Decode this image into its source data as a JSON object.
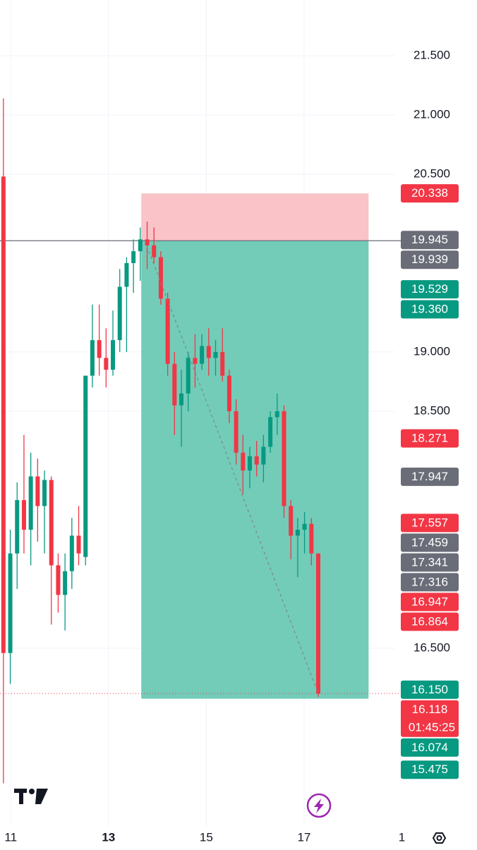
{
  "chart_data": {
    "type": "candlestick",
    "up_color": "#089981",
    "down_color": "#f23645",
    "xlim": [
      10.78,
      19.08
    ],
    "ylim": [
      15.0,
      21.97
    ],
    "xticks": [
      11,
      {
        "value": 13,
        "label": "13"
      },
      15,
      17,
      {
        "value": 19,
        "label": "1"
      }
    ],
    "yticks": [
      {
        "value": 21.5,
        "label": "21.500"
      },
      {
        "value": 21.0,
        "label": "21.000"
      },
      {
        "value": 20.5,
        "label": "20.500"
      },
      {
        "value": 19.0,
        "label": "19.000"
      },
      {
        "value": 18.5,
        "label": "18.500"
      },
      {
        "value": 16.5,
        "label": "16.500"
      }
    ],
    "grid": true,
    "x": [
      10.85,
      10.99,
      11.13,
      11.27,
      11.41,
      11.55,
      11.69,
      11.83,
      11.97,
      12.11,
      12.25,
      12.39,
      12.53,
      12.67,
      12.81,
      12.95,
      13.09,
      13.23,
      13.37,
      13.51,
      13.65,
      13.79,
      13.93,
      14.07,
      14.21,
      14.35,
      14.49,
      14.63,
      14.77,
      14.91,
      15.05,
      15.19,
      15.33,
      15.47,
      15.61,
      15.75,
      15.89,
      16.03,
      16.17,
      16.31,
      16.45,
      16.59,
      16.73,
      16.87,
      17.01,
      17.15,
      17.29
    ],
    "open": [
      20.48,
      16.46,
      17.3,
      17.75,
      17.5,
      17.95,
      17.7,
      17.92,
      17.2,
      16.95,
      17.15,
      17.45,
      17.27,
      18.8,
      19.1,
      18.95,
      18.85,
      19.1,
      19.55,
      19.75,
      19.85,
      19.95,
      19.9,
      19.8,
      19.45,
      18.9,
      18.55,
      18.65,
      18.95,
      18.9,
      19.05,
      18.95,
      19.0,
      18.8,
      18.5,
      18.15,
      18.0,
      18.12,
      18.05,
      18.2,
      18.45,
      18.5,
      17.7,
      17.45,
      17.5,
      17.55,
      17.3
    ],
    "high": [
      21.14,
      17.5,
      17.9,
      18.3,
      18.15,
      18.1,
      18.0,
      17.95,
      17.3,
      17.3,
      17.6,
      17.7,
      18.8,
      19.4,
      19.4,
      19.2,
      19.35,
      19.7,
      19.8,
      19.95,
      20.05,
      20.1,
      20.05,
      19.85,
      19.5,
      19.0,
      18.85,
      19.0,
      19.15,
      19.15,
      19.2,
      19.1,
      19.2,
      18.85,
      18.6,
      18.3,
      18.2,
      18.25,
      18.3,
      18.5,
      18.65,
      18.55,
      17.75,
      17.6,
      17.65,
      17.6,
      17.3
    ],
    "low": [
      15.36,
      16.2,
      17.0,
      17.3,
      17.2,
      17.4,
      17.3,
      16.7,
      16.8,
      16.65,
      17.0,
      17.2,
      17.2,
      18.7,
      18.8,
      18.7,
      18.8,
      19.0,
      19.0,
      19.5,
      19.6,
      19.7,
      19.75,
      19.4,
      18.8,
      18.3,
      18.2,
      18.5,
      18.7,
      18.85,
      18.8,
      18.8,
      18.75,
      18.4,
      18.05,
      17.8,
      17.85,
      17.95,
      17.9,
      18.15,
      18.3,
      17.6,
      17.25,
      17.1,
      17.3,
      17.2,
      16.09
    ],
    "close": [
      16.46,
      17.3,
      17.75,
      17.5,
      17.95,
      17.7,
      17.92,
      17.2,
      16.95,
      17.15,
      17.45,
      17.3,
      18.8,
      19.1,
      18.95,
      18.85,
      19.1,
      19.55,
      19.75,
      19.85,
      19.95,
      19.9,
      19.8,
      19.45,
      18.9,
      18.55,
      18.65,
      18.95,
      18.9,
      19.05,
      18.95,
      19.0,
      18.8,
      18.5,
      18.15,
      18.0,
      18.12,
      18.05,
      18.2,
      18.45,
      18.5,
      17.7,
      17.45,
      17.5,
      17.55,
      17.3,
      16.118
    ],
    "position": {
      "entry": 19.939,
      "stop": 20.338,
      "target": 16.074,
      "start": 13.67,
      "end": 18.32
    },
    "last_price": 16.118,
    "price_labels": [
      {
        "value": 20.338,
        "label": "20.338",
        "color": "#f23645"
      },
      {
        "value": 19.945,
        "label": "19.945",
        "color": "#6a6d78"
      },
      {
        "value": 19.939,
        "label": "19.939",
        "color": "#6a6d78"
      },
      {
        "value": 19.529,
        "label": "19.529",
        "color": "#089981"
      },
      {
        "value": 19.36,
        "label": "19.360",
        "color": "#089981"
      },
      {
        "value": 18.271,
        "label": "18.271",
        "color": "#f23645"
      },
      {
        "value": 17.947,
        "label": "17.947",
        "color": "#6a6d78"
      },
      {
        "value": 17.557,
        "label": "17.557",
        "color": "#f23645"
      },
      {
        "value": 17.459,
        "label": "17.459",
        "color": "#6a6d78"
      },
      {
        "value": 17.341,
        "label": "17.341",
        "color": "#6a6d78"
      },
      {
        "value": 17.316,
        "label": "17.316",
        "color": "#6a6d78"
      },
      {
        "value": 16.947,
        "label": "16.947",
        "color": "#f23645"
      },
      {
        "value": 16.864,
        "label": "16.864",
        "color": "#f23645"
      },
      {
        "value": 16.15,
        "label": "16.150",
        "color": "#089981"
      },
      {
        "value": 16.118,
        "label": "16.118",
        "color": "#f23645",
        "countdown": "01:45:25"
      },
      {
        "value": 16.074,
        "label": "16.074",
        "color": "#089981"
      },
      {
        "value": 15.475,
        "label": "15.475",
        "color": "#089981"
      }
    ]
  }
}
